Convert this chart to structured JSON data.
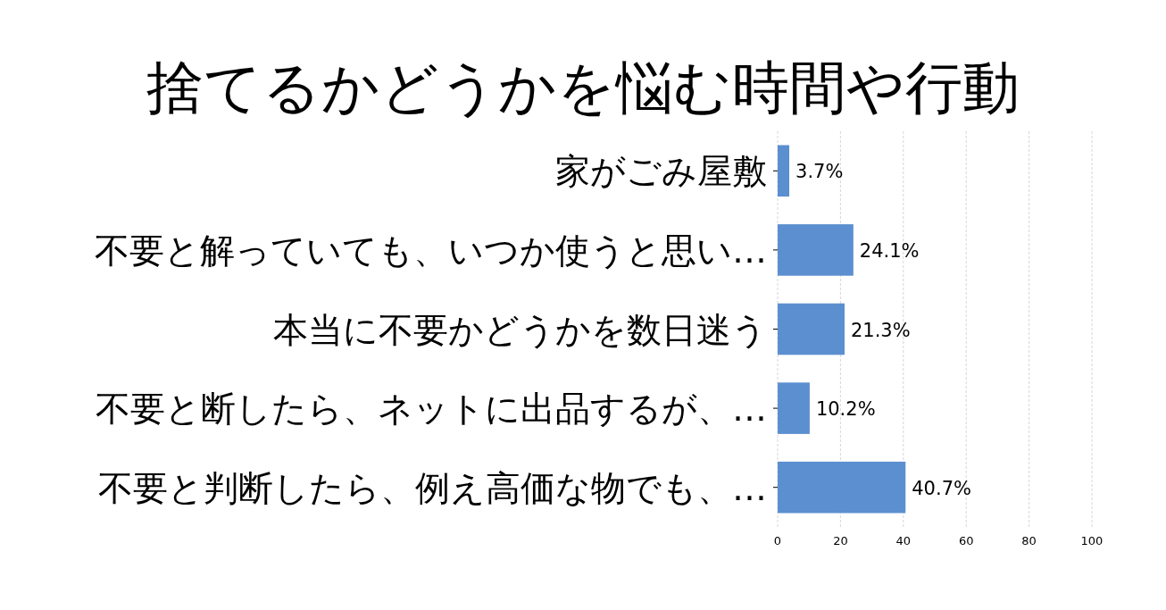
{
  "chart_data": {
    "type": "bar",
    "orientation": "horizontal",
    "title": "捨てるかどうかを悩む時間や行動",
    "categories": [
      "家がごみ屋敷",
      "不要と解っていても、いつか使うと思い…",
      "本当に不要かどうかを数日迷う",
      "不要と断したら、ネットに出品するが、…",
      "不要と判断したら、例え高価な物でも、…"
    ],
    "values": [
      3.7,
      24.1,
      21.3,
      10.2,
      40.7
    ],
    "value_labels": [
      "3.7%",
      "24.1%",
      "21.3%",
      "10.2%",
      "40.7%"
    ],
    "color": "#5b8fd0",
    "xlim": [
      0,
      100
    ],
    "xticks": [
      0,
      20,
      40,
      60,
      80,
      100
    ],
    "grid": "x"
  }
}
